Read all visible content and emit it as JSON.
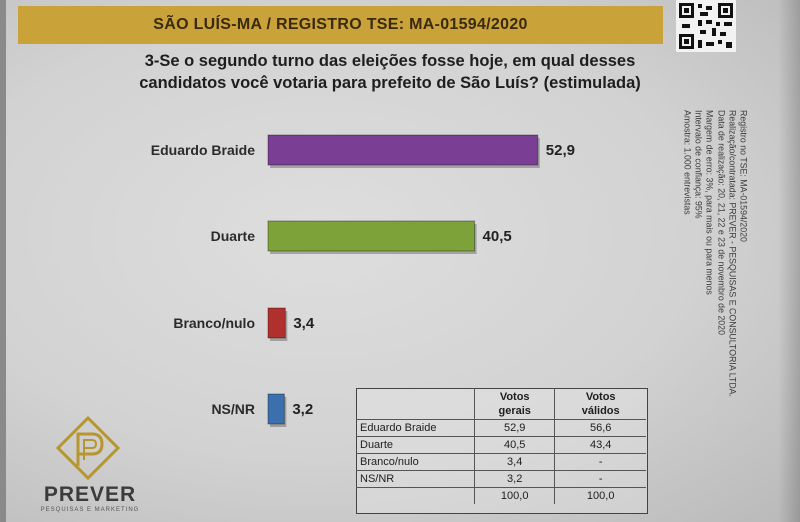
{
  "header": {
    "title": "SÃO LUÍS-MA / REGISTRO TSE: MA-01594/2020"
  },
  "question": {
    "line1": "3-Se o segundo turno das eleições fosse hoje, em qual desses",
    "line2": "candidatos você votaria para prefeito de São Luís? (estimulada)"
  },
  "chart_data": {
    "type": "bar",
    "orientation": "horizontal",
    "categories": [
      "Eduardo Braide",
      "Duarte",
      "Branco/nulo",
      "NS/NR"
    ],
    "values": [
      52.9,
      40.5,
      3.4,
      3.2
    ],
    "value_labels": [
      "52,9",
      "40,5",
      "3,4",
      "3,2"
    ],
    "colors": [
      "#7a3f95",
      "#7ea23a",
      "#b0302e",
      "#3b6fae"
    ],
    "title": "",
    "xlabel": "",
    "ylabel": "",
    "xlim": [
      0,
      60
    ],
    "grid": false,
    "legend": "none"
  },
  "side_notes": [
    "Registro no TSE: MA-01594/2020",
    "Realização/contratada: PREVER - PESQUISAS E CONSULTORIA LTDA.",
    "Data de realização: 20, 21, 22 e 23 de novembro de 2020",
    "Margem de erro: 3%, para mais ou para menos",
    "Intervalo de confiança: 95%",
    "Amostra: 1.000 entrevistas"
  ],
  "table": {
    "headers": [
      "",
      "Votos gerais",
      "Votos válidos"
    ],
    "header_lines": [
      [
        "Votos",
        "gerais"
      ],
      [
        "Votos",
        "válidos"
      ]
    ],
    "rows": [
      [
        "Eduardo Braide",
        "52,9",
        "56,6"
      ],
      [
        "Duarte",
        "40,5",
        "43,4"
      ],
      [
        "Branco/nulo",
        "3,4",
        "-"
      ],
      [
        "NS/NR",
        "3,2",
        "-"
      ],
      [
        "",
        "100,0",
        "100,0"
      ]
    ]
  },
  "logo": {
    "name": "PREVER",
    "subtitle": "PESQUISAS E MARKETING"
  }
}
